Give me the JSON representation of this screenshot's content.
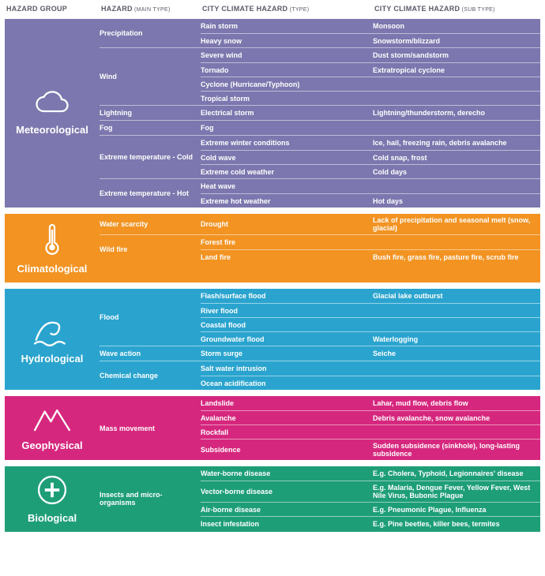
{
  "headers": {
    "group": "HAZARD GROUP",
    "main": "HAZARD",
    "main_sup": "(MAIN TYPE)",
    "type": "CITY CLIMATE HAZARD",
    "type_sup": "(TYPE)",
    "sub": "CITY CLIMATE HAZARD",
    "sub_sup": "(SUB TYPE)"
  },
  "colors": {
    "meteorological": "#7c77ae",
    "climatological": "#f29322",
    "hydrological": "#2aa4cf",
    "geophysical": "#d6277e",
    "biological": "#1e9e77"
  },
  "groups": [
    {
      "id": "meteorological",
      "name": "Meteorological",
      "icon": "cloud",
      "hazards": [
        {
          "main": "Precipitation",
          "rows": [
            {
              "type": "Rain storm",
              "sub": "Monsoon"
            },
            {
              "type": "Heavy snow",
              "sub": "Snowstorm/blizzard"
            }
          ]
        },
        {
          "main": "Wind",
          "rows": [
            {
              "type": "Severe wind",
              "sub": "Dust storm/sandstorm"
            },
            {
              "type": "Tornado",
              "sub": "Extratropical cyclone"
            },
            {
              "type": "Cyclone (Hurricane/Typhoon)",
              "sub": ""
            },
            {
              "type": "Tropical storm",
              "sub": ""
            }
          ]
        },
        {
          "main": "Lightning",
          "rows": [
            {
              "type": "Electrical storm",
              "sub": "Lightning/thunderstorm, derecho"
            }
          ]
        },
        {
          "main": "Fog",
          "rows": [
            {
              "type": "Fog",
              "sub": ""
            }
          ]
        },
        {
          "main": "Extreme temperature - Cold",
          "rows": [
            {
              "type": "Extreme winter conditions",
              "sub": "Ice, hail, freezing rain, debris avalanche"
            },
            {
              "type": "Cold wave",
              "sub": "Cold snap, frost"
            },
            {
              "type": "Extreme cold weather",
              "sub": "Cold days"
            }
          ]
        },
        {
          "main": "Extreme temperature - Hot",
          "rows": [
            {
              "type": "Heat wave",
              "sub": ""
            },
            {
              "type": "Extreme hot weather",
              "sub": "Hot days"
            }
          ]
        }
      ]
    },
    {
      "id": "climatological",
      "name": "Climatological",
      "icon": "thermometer",
      "hazards": [
        {
          "main": "Water scarcity",
          "rows": [
            {
              "type": "Drought",
              "sub": "Lack of precipitation and seasonal melt (snow, glacial)"
            }
          ]
        },
        {
          "main": "Wild fire",
          "rows": [
            {
              "type": "Forest fire",
              "sub": ""
            },
            {
              "type": "Land fire",
              "sub": "Bush fire, grass fire, pasture fire, scrub fire"
            }
          ]
        }
      ]
    },
    {
      "id": "hydrological",
      "name": "Hydrological",
      "icon": "wave",
      "hazards": [
        {
          "main": "Flood",
          "rows": [
            {
              "type": "Flash/surface flood",
              "sub": "Glacial lake outburst"
            },
            {
              "type": "River flood",
              "sub": ""
            },
            {
              "type": "Coastal flood",
              "sub": ""
            },
            {
              "type": "Groundwater flood",
              "sub": "Waterlogging"
            }
          ]
        },
        {
          "main": "Wave action",
          "rows": [
            {
              "type": "Storm surge",
              "sub": "Seiche"
            }
          ]
        },
        {
          "main": "Chemical change",
          "rows": [
            {
              "type": "Salt water intrusion",
              "sub": ""
            },
            {
              "type": "Ocean acidification",
              "sub": ""
            }
          ]
        }
      ]
    },
    {
      "id": "geophysical",
      "name": "Geophysical",
      "icon": "mountain",
      "hazards": [
        {
          "main": "Mass movement",
          "rows": [
            {
              "type": "Landslide",
              "sub": "Lahar, mud flow, debris flow"
            },
            {
              "type": "Avalanche",
              "sub": "Debris avalanche, snow avalanche"
            },
            {
              "type": "Rockfall",
              "sub": ""
            },
            {
              "type": "Subsidence",
              "sub": "Sudden subsidence (sinkhole), long-lasting subsidence"
            }
          ]
        }
      ]
    },
    {
      "id": "biological",
      "name": "Biological",
      "icon": "medical",
      "hazards": [
        {
          "main": "Insects and micro-organisms",
          "rows": [
            {
              "type": "Water-borne disease",
              "sub": "E.g. Cholera, Typhoid, Legionnaires' disease"
            },
            {
              "type": "Vector-borne disease",
              "sub": "E.g. Malaria, Dengue Fever, Yellow Fever, West Nile Virus, Bubonic Plague"
            },
            {
              "type": "Air-borne disease",
              "sub": "E.g. Pneumonic Plague, Influenza"
            },
            {
              "type": "Insect infestation",
              "sub": "E.g. Pine beetles, killer bees, termites"
            }
          ]
        }
      ]
    }
  ]
}
